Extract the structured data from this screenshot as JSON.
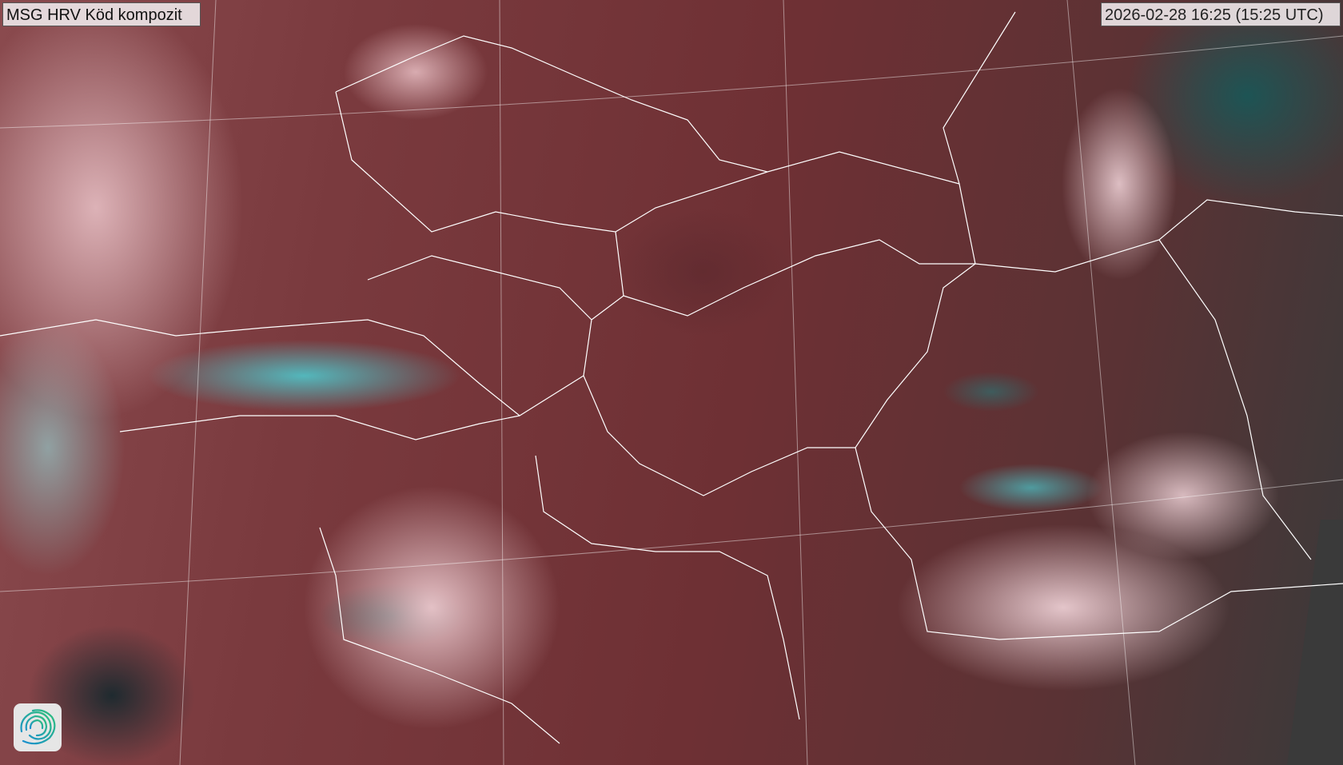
{
  "map": {
    "title": "MSG HRV Köd kompozit",
    "timestamp": "2026-02-28 16:25 (15:25 UTC)",
    "logo": "swirl-logo-icon",
    "colors": {
      "land": "#6e3034",
      "snow": "#46e1e6",
      "fog": "#ebcdd2",
      "borders": "#ffffff"
    }
  }
}
